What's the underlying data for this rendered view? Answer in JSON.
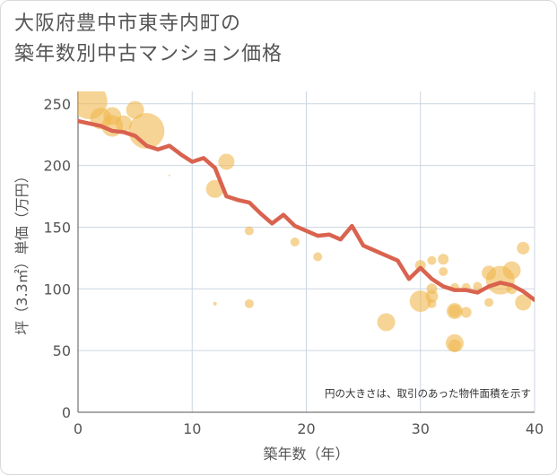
{
  "title_line1": "大阪府豊中市東寺内町の",
  "title_line2": "築年数別中古マンション価格",
  "chart_data": {
    "type": "scatter",
    "xlabel": "築年数（年）",
    "ylabel": "坪（3.3㎡）単価（万円）",
    "xlim": [
      0,
      40
    ],
    "ylim": [
      0,
      260
    ],
    "xticks": [
      0,
      10,
      20,
      30,
      40
    ],
    "yticks": [
      0,
      50,
      100,
      150,
      200,
      250
    ],
    "grid": true,
    "note": "円の大きさは、取引のあった物件面積を示す",
    "colors": {
      "bubble": "#f0b84e",
      "line": "#d9634f",
      "grid": "#ccd6e0",
      "axis": "#555555"
    },
    "series": [
      {
        "type": "bubble",
        "points": [
          {
            "x": 1,
            "y": 252,
            "s": 20
          },
          {
            "x": 2,
            "y": 238,
            "s": 12
          },
          {
            "x": 3,
            "y": 240,
            "s": 10
          },
          {
            "x": 3,
            "y": 232,
            "s": 12
          },
          {
            "x": 4,
            "y": 234,
            "s": 9
          },
          {
            "x": 5,
            "y": 245,
            "s": 10
          },
          {
            "x": 6,
            "y": 228,
            "s": 20
          },
          {
            "x": 8,
            "y": 192,
            "s": 1
          },
          {
            "x": 12,
            "y": 181,
            "s": 10
          },
          {
            "x": 12,
            "y": 88,
            "s": 2
          },
          {
            "x": 13,
            "y": 203,
            "s": 9
          },
          {
            "x": 15,
            "y": 147,
            "s": 5
          },
          {
            "x": 15,
            "y": 88,
            "s": 5
          },
          {
            "x": 19,
            "y": 138,
            "s": 5
          },
          {
            "x": 21,
            "y": 126,
            "s": 5
          },
          {
            "x": 27,
            "y": 73,
            "s": 10
          },
          {
            "x": 30,
            "y": 119,
            "s": 6
          },
          {
            "x": 30,
            "y": 90,
            "s": 12
          },
          {
            "x": 31,
            "y": 123,
            "s": 5
          },
          {
            "x": 31,
            "y": 100,
            "s": 6
          },
          {
            "x": 31,
            "y": 94,
            "s": 7
          },
          {
            "x": 31,
            "y": 88,
            "s": 5
          },
          {
            "x": 32,
            "y": 124,
            "s": 6
          },
          {
            "x": 32,
            "y": 114,
            "s": 5
          },
          {
            "x": 33,
            "y": 101,
            "s": 5
          },
          {
            "x": 33,
            "y": 82,
            "s": 9
          },
          {
            "x": 33,
            "y": 82,
            "s": 7
          },
          {
            "x": 33,
            "y": 56,
            "s": 10
          },
          {
            "x": 33,
            "y": 54,
            "s": 7
          },
          {
            "x": 34,
            "y": 81,
            "s": 6
          },
          {
            "x": 34,
            "y": 101,
            "s": 5
          },
          {
            "x": 35,
            "y": 102,
            "s": 5
          },
          {
            "x": 36,
            "y": 113,
            "s": 8
          },
          {
            "x": 36,
            "y": 89,
            "s": 5
          },
          {
            "x": 37,
            "y": 107,
            "s": 16
          },
          {
            "x": 38,
            "y": 115,
            "s": 10
          },
          {
            "x": 38,
            "y": 100,
            "s": 6
          },
          {
            "x": 39,
            "y": 133,
            "s": 7
          },
          {
            "x": 39,
            "y": 89,
            "s": 9
          }
        ]
      },
      {
        "type": "line",
        "x": [
          0,
          1,
          2,
          3,
          4,
          5,
          6,
          7,
          8,
          9,
          10,
          11,
          12,
          13,
          14,
          15,
          16,
          17,
          18,
          19,
          20,
          21,
          22,
          23,
          24,
          25,
          26,
          27,
          28,
          29,
          30,
          31,
          32,
          33,
          34,
          35,
          36,
          37,
          38,
          39,
          40
        ],
        "y": [
          236,
          234,
          232,
          228,
          227,
          224,
          216,
          213,
          216,
          209,
          203,
          206,
          198,
          175,
          172,
          170,
          161,
          153,
          160,
          151,
          147,
          143,
          144,
          140,
          151,
          135,
          131,
          127,
          123,
          108,
          117,
          108,
          102,
          99,
          99,
          97,
          102,
          105,
          103,
          98,
          91
        ]
      }
    ]
  }
}
